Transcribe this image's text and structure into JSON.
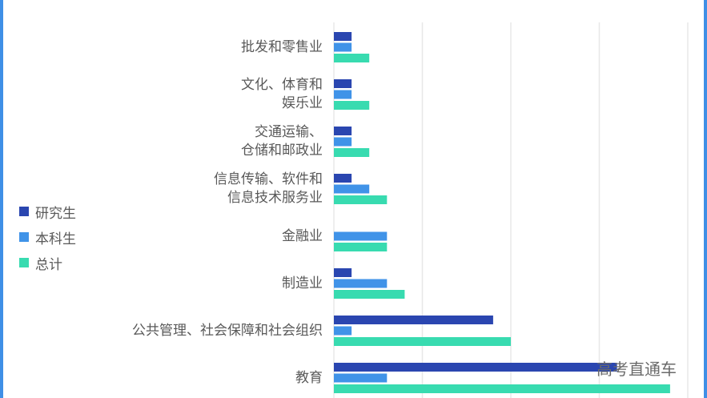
{
  "chart_data": {
    "type": "bar",
    "orientation": "horizontal",
    "categories": [
      "批发和零售业",
      "文化、体育和\n娱乐业",
      "交通运输、\n仓储和邮政业",
      "信息传输、软件和\n信息技术服务业",
      "金融业",
      "制造业",
      "公共管理、社会保障和社会组织",
      "教育"
    ],
    "series": [
      {
        "name": "研究生",
        "color": "#2a46b0",
        "values": [
          1,
          1,
          1,
          1,
          0,
          1,
          9,
          16
        ]
      },
      {
        "name": "本科生",
        "color": "#4093e8",
        "values": [
          1,
          1,
          1,
          2,
          3,
          3,
          1,
          3
        ]
      },
      {
        "name": "总计",
        "color": "#38dbb0",
        "values": [
          2,
          2,
          2,
          3,
          3,
          4,
          10,
          19
        ]
      }
    ],
    "xlim": [
      0,
      20
    ],
    "grid": true,
    "legend_position": "left"
  },
  "watermark": "高考直通车"
}
